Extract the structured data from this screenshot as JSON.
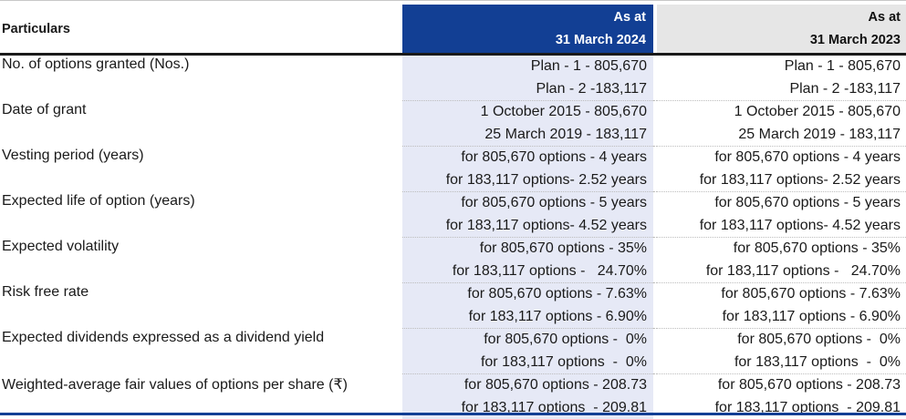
{
  "header": {
    "particulars": "Particulars",
    "col2024_line1": "As at",
    "col2024_line2": "31 March 2024",
    "col2023_line1": "As at",
    "col2023_line2": "31 March 2023"
  },
  "rows": [
    {
      "label": "No. of options granted (Nos.)",
      "v2024": [
        "Plan - 1 - 805,670",
        "Plan - 2 -183,117"
      ],
      "v2023": [
        "Plan - 1 - 805,670",
        "Plan - 2 -183,117"
      ]
    },
    {
      "label": "Date of grant",
      "v2024": [
        "1 October 2015 - 805,670",
        "25 March 2019 - 183,117"
      ],
      "v2023": [
        "1 October 2015 - 805,670",
        "25 March 2019 - 183,117"
      ]
    },
    {
      "label": "Vesting period (years)",
      "v2024": [
        "for 805,670 options - 4 years",
        "for 183,117 options- 2.52 years"
      ],
      "v2023": [
        "for 805,670 options - 4 years",
        "for 183,117 options- 2.52 years"
      ]
    },
    {
      "label": "Expected life of option (years)",
      "v2024": [
        "for 805,670 options - 5 years",
        "for 183,117 options- 4.52 years"
      ],
      "v2023": [
        "for 805,670 options - 5 years",
        "for 183,117 options- 4.52 years"
      ]
    },
    {
      "label": "Expected volatility",
      "v2024": [
        "for 805,670 options - 35%",
        "for 183,117 options -   24.70%"
      ],
      "v2023": [
        "for 805,670 options - 35%",
        "for 183,117 options -   24.70%"
      ]
    },
    {
      "label": "Risk free rate",
      "v2024": [
        "for 805,670 options - 7.63%",
        "for 183,117 options - 6.90%"
      ],
      "v2023": [
        "for 805,670 options - 7.63%",
        "for 183,117 options - 6.90%"
      ]
    },
    {
      "label": "Expected dividends expressed as a dividend yield",
      "v2024": [
        "for 805,670 options -  0%",
        "for 183,117 options  -  0%"
      ],
      "v2023": [
        "for 805,670 options -  0%",
        "for 183,117 options  -  0%"
      ]
    },
    {
      "label": "Weighted-average fair values of options per share (₹)",
      "v2024": [
        "for 805,670 options - 208.73",
        "for 183,117 options  - 209.81"
      ],
      "v2023": [
        "for 805,670 options - 208.73",
        "for 183,117 options  - 209.81"
      ]
    }
  ],
  "colors": {
    "header_2024_bg": "#123f94",
    "header_2023_bg": "#e6e6e6",
    "col_2024_bg": "#e6e9f6",
    "bottom_rule": "#123f94"
  }
}
